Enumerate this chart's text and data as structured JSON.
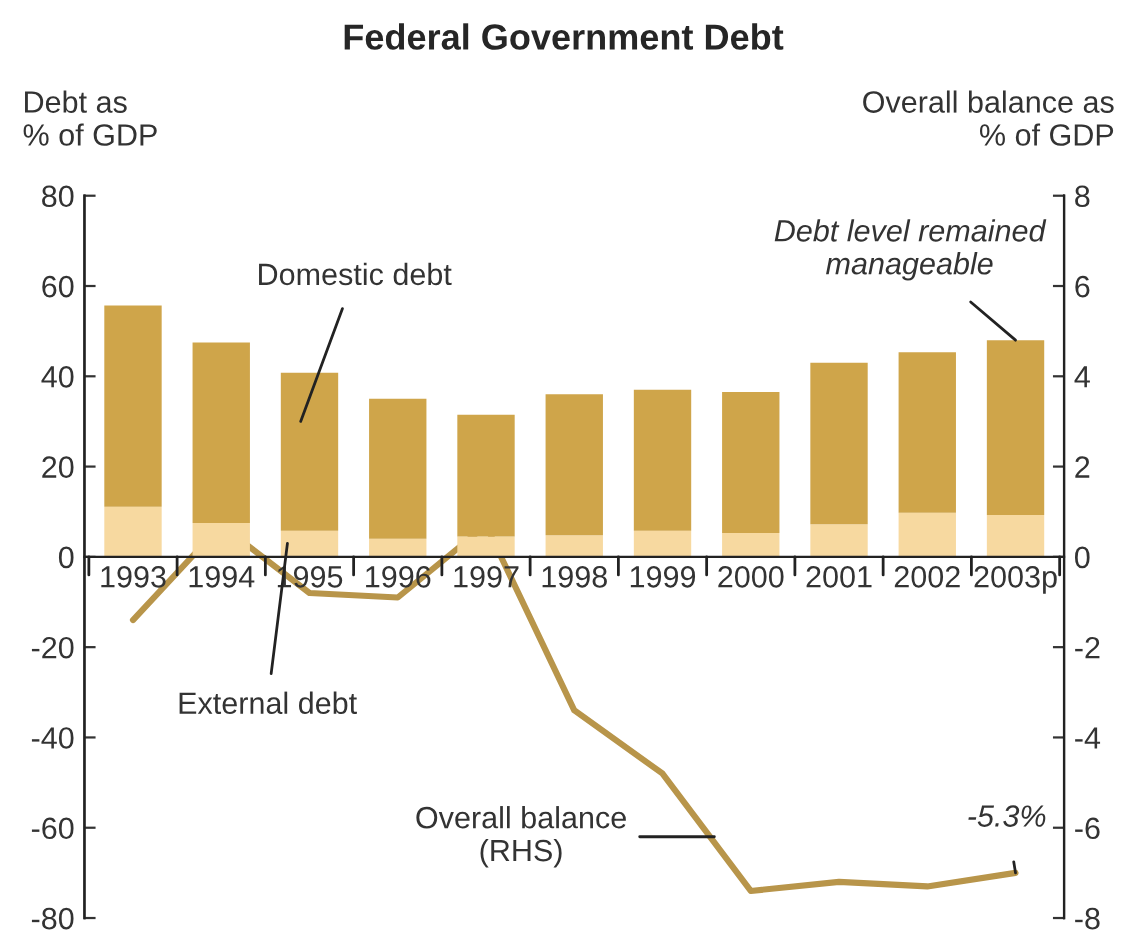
{
  "chart_data": {
    "type": "bar",
    "title": "Federal Government Debt",
    "ylabel": "Debt as\n% of GDP",
    "y2label": "Overall balance as\n% of GDP",
    "categories": [
      "1993",
      "1994",
      "1995",
      "1996",
      "1997",
      "1998",
      "1999",
      "2000",
      "2001",
      "2002",
      "2003p"
    ],
    "stacked": true,
    "series": [
      {
        "name": "External debt",
        "color": "#f7d9a0",
        "values": [
          11.1,
          7.5,
          5.8,
          4.0,
          4.5,
          4.8,
          5.8,
          5.3,
          7.2,
          9.8,
          9.3
        ]
      },
      {
        "name": "Domestic debt",
        "color": "#cfa54a",
        "values": [
          44.6,
          40.0,
          35.0,
          31.0,
          27.0,
          31.2,
          31.2,
          31.2,
          35.8,
          35.5,
          38.7
        ]
      },
      {
        "name": "Overall balance\n(RHS)",
        "type": "line",
        "axis": "y2",
        "color": "#b8954a",
        "values": [
          -1.4,
          0.7,
          -0.8,
          -0.9,
          0.7,
          -3.4,
          -4.8,
          -7.4,
          -7.2,
          -7.3,
          -7.0
        ]
      }
    ],
    "ylim": [
      -80,
      80
    ],
    "yticks": [
      -80,
      -60,
      -40,
      -20,
      0,
      20,
      40,
      60,
      80
    ],
    "y2lim": [
      -8,
      8
    ],
    "y2ticks": [
      -8,
      -6,
      -4,
      -2,
      0,
      2,
      4,
      6,
      8
    ],
    "annotations": [
      {
        "text": "Debt level remained\nmanageable",
        "x": "2003p",
        "y": 48
      },
      {
        "text": "-5.3%",
        "x": "2003p",
        "y": -70
      }
    ],
    "grid": false,
    "legend": false
  }
}
